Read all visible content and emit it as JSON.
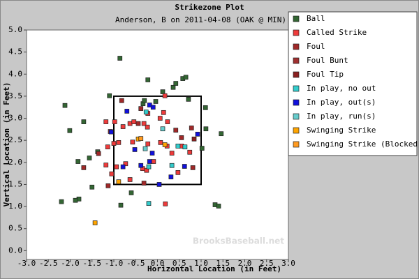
{
  "chart_data": {
    "type": "scatter",
    "title": "Strikezone Plot",
    "subtitle": "Anderson, B on 2011-04-08 (OAK @ MIN)",
    "x_label": "Horizontal Location (in Feet)",
    "y_label": "Vertical Location (in Feet)",
    "annotation": "BrooksBaseball.net",
    "xlim": [
      -3.0,
      3.0
    ],
    "ylim": [
      -0.2,
      5.0
    ],
    "xticks": [
      {
        "value": -3,
        "label": "-3.0"
      },
      -2.5,
      {
        "value": -2,
        "label": "-2.0"
      },
      -1.5,
      {
        "value": -1,
        "label": "-1.0"
      },
      -0.5,
      {
        "value": 0,
        "label": "0.0"
      },
      0.5,
      {
        "value": 1,
        "label": "1.0"
      },
      1.5,
      {
        "value": 2,
        "label": "2.0"
      },
      2.5,
      {
        "value": 3,
        "label": "3.0"
      }
    ],
    "yticks": [
      {
        "value": 0,
        "label": "0.0"
      },
      0.5,
      {
        "value": 1,
        "label": "1.0"
      },
      1.5,
      {
        "value": 2,
        "label": "2.0"
      },
      2.5,
      {
        "value": 3,
        "label": "3.0"
      },
      3.5,
      {
        "value": 4,
        "label": "4.0"
      },
      4.5,
      {
        "value": 5,
        "label": "5.0"
      }
    ],
    "strike_zone": {
      "x": [
        -1,
        1
      ],
      "y": [
        1.5,
        3.5
      ]
    },
    "legend": "top-right",
    "series": [
      {
        "name": "Ball",
        "color": "#336633",
        "x": [
          -0.86,
          -0.22,
          0.12,
          0.36,
          0.42,
          0.58,
          0.65,
          -2.12,
          -1.1,
          1.1,
          -2.01,
          1.46,
          1.11,
          -1.69,
          1.02,
          -1.82,
          -1.56,
          -1.37,
          -1.5,
          -1.8,
          -1.88,
          -2.2,
          -0.6,
          -0.84,
          1.32,
          1.4,
          -0.33,
          -0.3,
          0.71,
          -0.04
        ],
        "values": [
          4.36,
          3.87,
          3.6,
          3.7,
          3.79,
          3.9,
          3.93,
          3.29,
          3.51,
          3.24,
          2.72,
          2.65,
          2.76,
          2.92,
          2.32,
          2.02,
          2.1,
          2.24,
          1.44,
          1.17,
          1.14,
          1.11,
          1.31,
          1.03,
          1.04,
          1.01,
          3.33,
          3.4,
          3.43,
          3.38
        ]
      },
      {
        "name": "Called Strike",
        "color": "#ee3b3b",
        "x": [
          -0.98,
          -0.79,
          -0.63,
          -0.54,
          -0.31,
          -0.23,
          0.06,
          0.23,
          -1.18,
          -1.0,
          -0.89,
          -1.14,
          -0.57,
          -0.22,
          0.07,
          0.22,
          0.55,
          -1.18,
          -0.73,
          -0.09,
          0.33,
          0.74,
          -0.94,
          -0.34,
          0.47,
          -0.63,
          -0.25,
          -1.05,
          0.17,
          -0.22,
          0.14,
          0.18
        ],
        "values": [
          2.92,
          2.81,
          2.88,
          2.92,
          2.88,
          2.8,
          3.0,
          2.92,
          2.92,
          2.43,
          2.45,
          2.35,
          2.46,
          2.42,
          2.45,
          2.37,
          2.37,
          1.94,
          1.97,
          2.02,
          2.21,
          2.23,
          1.9,
          1.86,
          1.77,
          1.61,
          1.82,
          1.74,
          3.51,
          3.11,
          3.13,
          1.06
        ]
      },
      {
        "name": "Foul",
        "color": "#a02828",
        "x": [
          -0.82,
          -0.38,
          -0.44,
          0.42,
          0.78,
          0.55,
          -1.35,
          -1.69,
          -1.13,
          0.81,
          -0.31
        ],
        "values": [
          3.4,
          3.22,
          2.88,
          2.73,
          2.78,
          2.56,
          2.2,
          1.88,
          1.47,
          1.88,
          1.53
        ]
      },
      {
        "name": "Foul Bunt",
        "color": "#a03030",
        "x": [
          -1.08
        ],
        "values": [
          2.7
        ]
      },
      {
        "name": "Foul Tip",
        "color": "#8a2020",
        "x": [
          0.84
        ],
        "values": [
          2.53
        ]
      },
      {
        "name": "In play, no out",
        "color": "#33cccc",
        "x": [
          -0.26,
          -0.2,
          0.47,
          0.33,
          -0.2,
          0.63
        ],
        "values": [
          3.14,
          1.9,
          2.37,
          1.93,
          1.07,
          2.35
        ]
      },
      {
        "name": "In play, out(s)",
        "color": "#1010dd",
        "x": [
          -0.7,
          -0.18,
          -0.1,
          -1.06,
          0.92,
          -0.12,
          -0.79,
          -0.18,
          0.04,
          0.31,
          0.62,
          -0.52,
          -0.38
        ],
        "values": [
          3.16,
          3.3,
          3.25,
          2.69,
          2.64,
          2.21,
          1.9,
          2.02,
          1.5,
          1.67,
          1.91,
          2.29,
          1.93
        ]
      },
      {
        "name": "In play, run(s)",
        "color": "#66cccc",
        "x": [
          0.12,
          -0.28
        ],
        "values": [
          2.76,
          2.31
        ]
      },
      {
        "name": "Swinging Strike",
        "color": "#ffa500",
        "x": [
          -0.44,
          0.17,
          -1.43,
          -0.89
        ],
        "values": [
          2.53,
          2.4,
          0.63,
          1.56
        ]
      },
      {
        "name": "Swinging Strike (Blocked)",
        "color": "#ff9a20",
        "x": [
          -0.38
        ],
        "values": [
          2.54
        ]
      }
    ]
  }
}
